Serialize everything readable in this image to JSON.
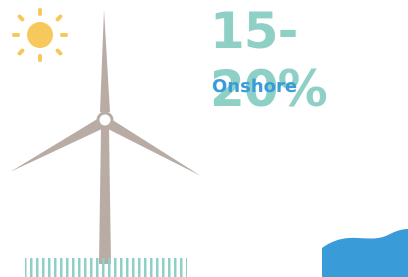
{
  "headline": "15-20%",
  "label": "Onshore"
}
